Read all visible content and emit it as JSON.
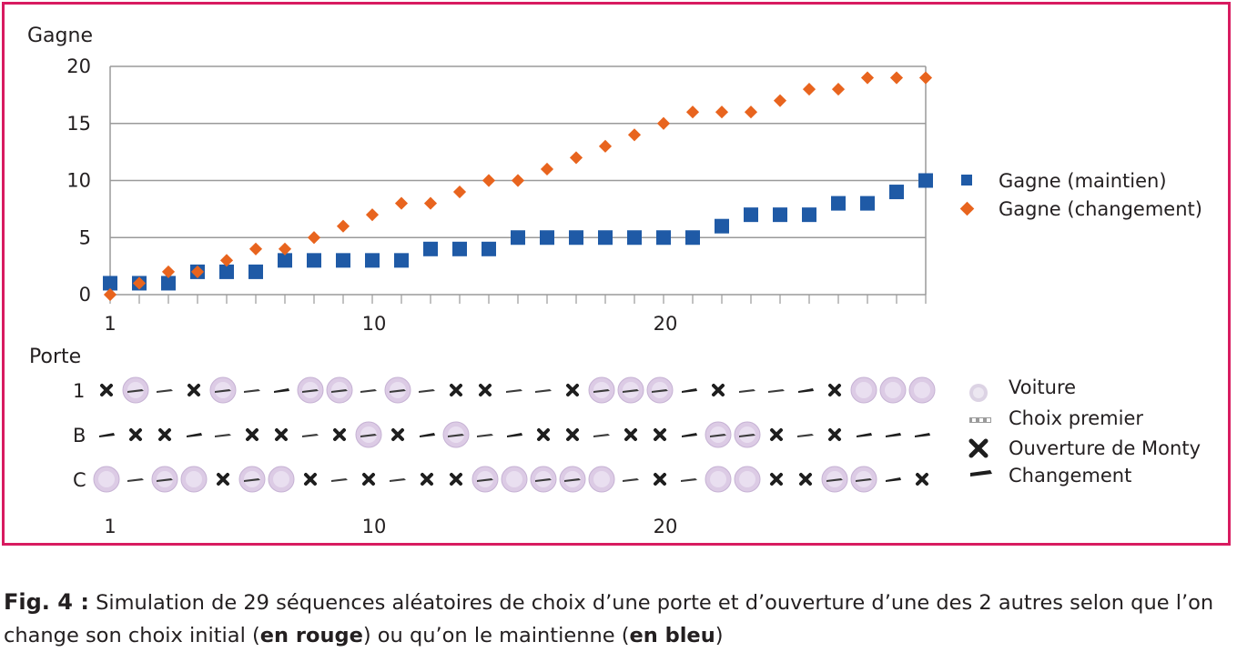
{
  "chart_data": [
    {
      "type": "scatter",
      "ylabel": "Gagne",
      "ylim": [
        0,
        20
      ],
      "y_ticks": [
        0,
        5,
        10,
        15,
        20
      ],
      "x_ticks": [
        1,
        10,
        20
      ],
      "xlim": [
        1,
        29
      ],
      "grid": "horizontal",
      "legend_position": "right",
      "series": [
        {
          "name": "Gagne (maintien)",
          "marker": "square",
          "color": "#1f5aa6",
          "x": [
            1,
            2,
            3,
            4,
            5,
            6,
            7,
            8,
            9,
            10,
            11,
            12,
            13,
            14,
            15,
            16,
            17,
            18,
            19,
            20,
            21,
            22,
            23,
            24,
            25,
            26,
            27,
            28,
            29
          ],
          "y": [
            1,
            1,
            1,
            2,
            2,
            2,
            3,
            3,
            3,
            3,
            3,
            4,
            4,
            4,
            5,
            5,
            5,
            5,
            5,
            5,
            5,
            6,
            7,
            7,
            7,
            8,
            8,
            9,
            10
          ]
        },
        {
          "name": "Gagne (changement)",
          "marker": "diamond",
          "color": "#e8641e",
          "x": [
            1,
            2,
            3,
            4,
            5,
            6,
            7,
            8,
            9,
            10,
            11,
            12,
            13,
            14,
            15,
            16,
            17,
            18,
            19,
            20,
            21,
            22,
            23,
            24,
            25,
            26,
            27,
            28,
            29
          ],
          "y": [
            0,
            1,
            2,
            2,
            3,
            4,
            4,
            5,
            6,
            7,
            8,
            8,
            9,
            10,
            10,
            11,
            12,
            13,
            14,
            15,
            16,
            16,
            16,
            17,
            18,
            18,
            19,
            19,
            19
          ]
        }
      ]
    },
    {
      "type": "symbol-grid",
      "ylabel": "Porte",
      "rows": [
        "1",
        "B",
        "C"
      ],
      "x_ticks": [
        1,
        10,
        20
      ],
      "legend": {
        "car": "Voiture",
        "first_choice": "Choix premier",
        "monty": "Ouverture de Monty",
        "switch": "Changement"
      },
      "sequences": {
        "1": [
          "monty",
          "car+first_choice",
          "first_choice",
          "monty",
          "car+first_choice",
          "first_choice",
          "switch",
          "car+first_choice",
          "car+first_choice",
          "first_choice",
          "car+first_choice",
          "first_choice",
          "monty",
          "monty",
          "first_choice",
          "first_choice",
          "monty",
          "car+first_choice",
          "car+first_choice",
          "car+first_choice",
          "switch",
          "monty",
          "first_choice",
          "first_choice",
          "switch",
          "monty",
          "car",
          "car",
          "car"
        ],
        "B": [
          "switch",
          "monty",
          "monty",
          "switch",
          "first_choice",
          "monty",
          "monty",
          "first_choice",
          "monty",
          "car+first_choice",
          "monty",
          "switch",
          "car+first_choice",
          "first_choice",
          "switch",
          "monty",
          "monty",
          "first_choice",
          "monty",
          "monty",
          "switch",
          "car+first_choice",
          "car+first_choice",
          "monty",
          "first_choice",
          "monty",
          "switch",
          "switch",
          "switch"
        ],
        "C": [
          "car",
          "first_choice",
          "car+first_choice",
          "car",
          "monty",
          "car+first_choice",
          "car",
          "monty",
          "first_choice",
          "monty",
          "first_choice",
          "monty",
          "monty",
          "car+first_choice",
          "car",
          "car+first_choice",
          "car+first_choice",
          "car",
          "first_choice",
          "monty",
          "first_choice",
          "car",
          "car",
          "monty",
          "monty",
          "car+first_choice",
          "car+first_choice",
          "switch",
          "monty"
        ]
      }
    }
  ],
  "caption": {
    "figure_label": "Fig. 4 :",
    "text_part1": " Simulation de 29 séquences aléatoires de choix d’une porte et d’ouverture d’une des 2 autres selon que l’on change son choix initial (",
    "bold_red": "en rouge",
    "text_part2": ") ou qu’on le maintienne (",
    "bold_blue": "en bleu",
    "text_part3": ")"
  }
}
